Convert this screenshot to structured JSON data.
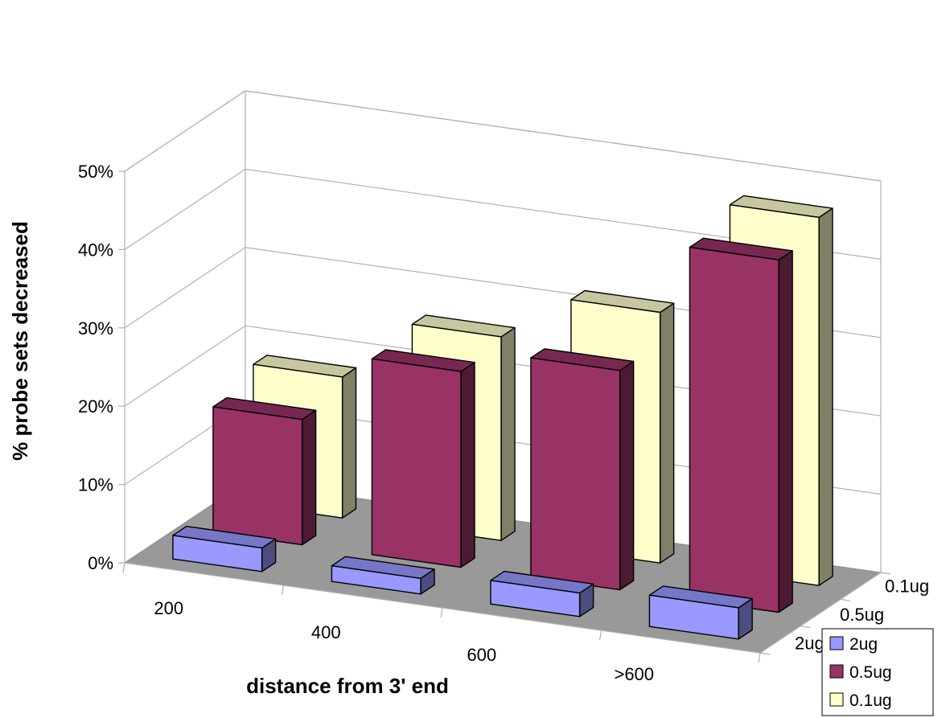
{
  "chart_data": {
    "type": "bar",
    "variant": "3d-column",
    "title": "",
    "xlabel": "distance from 3' end",
    "ylabel": "% probe sets decreased",
    "categories": [
      "200",
      "400",
      "600",
      ">600"
    ],
    "depth_categories": [
      "2ug",
      "0.5ug",
      "0.1ug"
    ],
    "y_ticks": [
      "0%",
      "10%",
      "20%",
      "30%",
      "40%",
      "50%"
    ],
    "ylim": [
      0,
      50
    ],
    "grid": true,
    "legend_position": "bottom-right",
    "series": [
      {
        "name": "2ug",
        "values": [
          3,
          2,
          3,
          4
        ]
      },
      {
        "name": "0.5ug",
        "values": [
          16,
          25,
          28,
          45
        ]
      },
      {
        "name": "0.1ug",
        "values": [
          18,
          26,
          32,
          47
        ]
      }
    ],
    "colors": {
      "2ug": "#9999ff",
      "0.5ug": "#993366",
      "0.1ug": "#ffffcc",
      "floor": "#999999",
      "grid": "#b0b0b0"
    }
  }
}
